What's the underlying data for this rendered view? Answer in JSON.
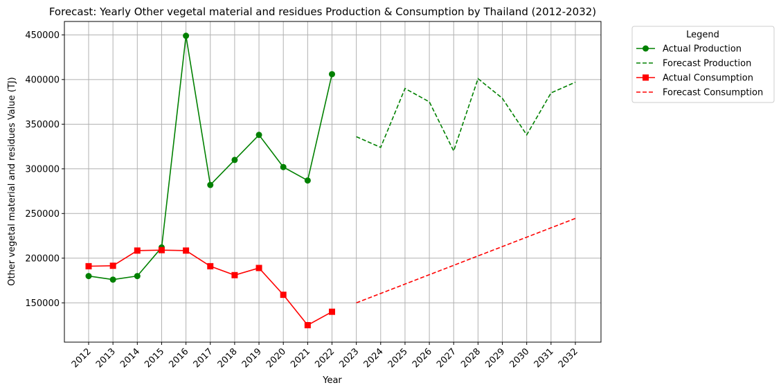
{
  "chart_data": {
    "type": "line",
    "title": "Forecast: Yearly Other vegetal material and residues Production & Consumption by Thailand (2012-2032)",
    "xlabel": "Year",
    "ylabel": "Other vegetal material and residues Value (TJ)",
    "categories": [
      "2012",
      "2013",
      "2014",
      "2015",
      "2016",
      "2017",
      "2018",
      "2019",
      "2020",
      "2021",
      "2022",
      "2023",
      "2024",
      "2025",
      "2026",
      "2027",
      "2028",
      "2029",
      "2030",
      "2031",
      "2032"
    ],
    "yticks": [
      150000,
      200000,
      250000,
      300000,
      350000,
      400000,
      450000
    ],
    "ytick_labels": [
      "150000",
      "200000",
      "250000",
      "300000",
      "350000",
      "400000",
      "450000"
    ],
    "ylim": [
      106000,
      465000
    ],
    "grid": true,
    "legend": {
      "title": "Legend",
      "placement": "outside-top-right"
    },
    "series": [
      {
        "name": "Actual Production",
        "color": "#008000",
        "style": "solid",
        "marker": "circle",
        "x": [
          "2012",
          "2013",
          "2014",
          "2015",
          "2016",
          "2017",
          "2018",
          "2019",
          "2020",
          "2021",
          "2022"
        ],
        "values": [
          180000,
          176000,
          180000,
          212000,
          449000,
          282000,
          310000,
          338000,
          302000,
          287000,
          406000
        ]
      },
      {
        "name": "Forecast Production",
        "color": "#008000",
        "style": "dashed",
        "marker": "none",
        "x": [
          "2023",
          "2024",
          "2025",
          "2026",
          "2027",
          "2028",
          "2029",
          "2030",
          "2031",
          "2032"
        ],
        "values": [
          336000,
          324000,
          390000,
          375000,
          320000,
          401000,
          379000,
          338000,
          385000,
          397000
        ]
      },
      {
        "name": "Actual Consumption",
        "color": "#ff0000",
        "style": "solid",
        "marker": "square",
        "x": [
          "2012",
          "2013",
          "2014",
          "2015",
          "2016",
          "2017",
          "2018",
          "2019",
          "2020",
          "2021",
          "2022"
        ],
        "values": [
          191000,
          191500,
          208500,
          209000,
          208500,
          191000,
          181000,
          189000,
          159000,
          125000,
          140000
        ]
      },
      {
        "name": "Forecast Consumption",
        "color": "#ff0000",
        "style": "dashed",
        "marker": "none",
        "x": [
          "2023",
          "2024",
          "2025",
          "2026",
          "2027",
          "2028",
          "2029",
          "2030",
          "2031",
          "2032"
        ],
        "values": [
          150000,
          160500,
          171000,
          181500,
          192000,
          202500,
          213000,
          223500,
          234000,
          244500
        ]
      }
    ]
  }
}
